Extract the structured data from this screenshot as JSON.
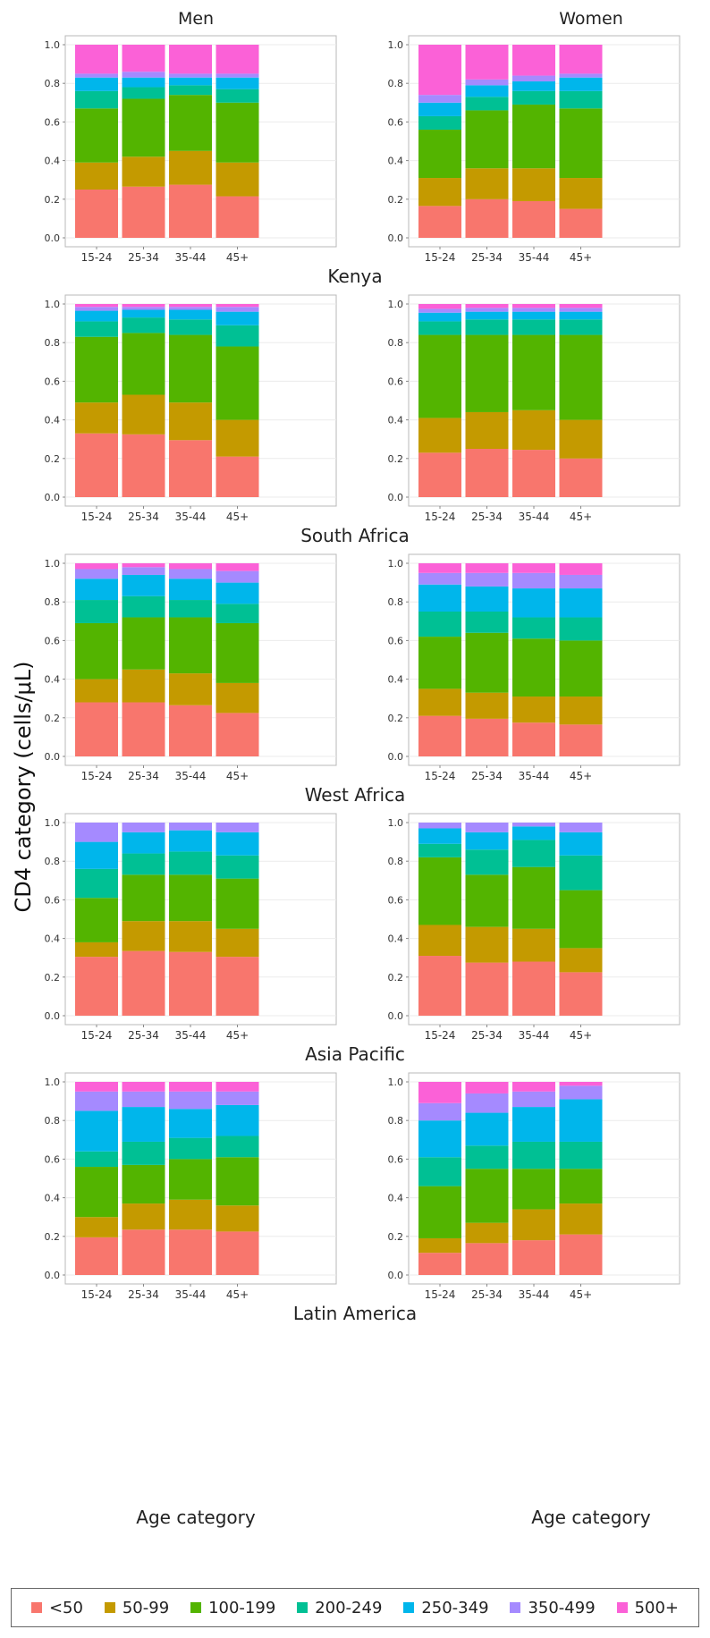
{
  "chart_data": {
    "type": "bar",
    "stacked": true,
    "ylabel": "CD4 category (cells/μL)",
    "column_titles": [
      "Men",
      "Women"
    ],
    "xlabel": "Age category",
    "categories": [
      "15-24",
      "25-34",
      "35-44",
      "45+"
    ],
    "ylim": [
      0,
      1
    ],
    "yticks": [
      "0.0",
      "0.2",
      "0.4",
      "0.6",
      "0.8",
      "1.0"
    ],
    "grid": true,
    "legend_position": "bottom",
    "legend": [
      {
        "label": "<50",
        "color": "#F8766D"
      },
      {
        "label": "50-99",
        "color": "#C49A00"
      },
      {
        "label": "100-199",
        "color": "#53B400"
      },
      {
        "label": "200-249",
        "color": "#00C094"
      },
      {
        "label": "250-349",
        "color": "#00B6EB"
      },
      {
        "label": "350-499",
        "color": "#A58AFF"
      },
      {
        "label": "500+",
        "color": "#FB61D7"
      }
    ],
    "regions": [
      {
        "name": "Kenya",
        "men": [
          [
            0,
            0.25,
            0.39,
            0.67,
            0.76,
            0.83,
            0.85,
            1.0
          ],
          [
            0,
            0.265,
            0.42,
            0.72,
            0.78,
            0.83,
            0.86,
            1.0
          ],
          [
            0,
            0.275,
            0.45,
            0.74,
            0.79,
            0.83,
            0.85,
            1.0
          ],
          [
            0,
            0.215,
            0.39,
            0.7,
            0.77,
            0.83,
            0.85,
            1.0
          ]
        ],
        "women": [
          [
            0,
            0.165,
            0.31,
            0.56,
            0.63,
            0.7,
            0.74,
            1.0
          ],
          [
            0,
            0.2,
            0.36,
            0.66,
            0.73,
            0.79,
            0.82,
            1.0
          ],
          [
            0,
            0.19,
            0.36,
            0.69,
            0.76,
            0.81,
            0.84,
            1.0
          ],
          [
            0,
            0.15,
            0.31,
            0.67,
            0.76,
            0.83,
            0.85,
            1.0
          ]
        ]
      },
      {
        "name": "South Africa",
        "men": [
          [
            0,
            0.33,
            0.49,
            0.83,
            0.91,
            0.965,
            0.985,
            1.0
          ],
          [
            0,
            0.325,
            0.53,
            0.85,
            0.93,
            0.97,
            0.985,
            1.0
          ],
          [
            0,
            0.295,
            0.49,
            0.84,
            0.92,
            0.97,
            0.985,
            1.0
          ],
          [
            0,
            0.21,
            0.4,
            0.78,
            0.89,
            0.96,
            0.985,
            1.0
          ]
        ],
        "women": [
          [
            0,
            0.23,
            0.41,
            0.84,
            0.91,
            0.955,
            0.975,
            1.0
          ],
          [
            0,
            0.25,
            0.44,
            0.84,
            0.92,
            0.96,
            0.98,
            1.0
          ],
          [
            0,
            0.245,
            0.45,
            0.84,
            0.92,
            0.96,
            0.98,
            1.0
          ],
          [
            0,
            0.2,
            0.4,
            0.84,
            0.92,
            0.96,
            0.98,
            1.0
          ]
        ]
      },
      {
        "name": "West Africa",
        "men": [
          [
            0,
            0.28,
            0.4,
            0.69,
            0.81,
            0.92,
            0.97,
            1.0
          ],
          [
            0,
            0.28,
            0.45,
            0.72,
            0.83,
            0.94,
            0.98,
            1.0
          ],
          [
            0,
            0.265,
            0.43,
            0.72,
            0.81,
            0.92,
            0.97,
            1.0
          ],
          [
            0,
            0.225,
            0.38,
            0.69,
            0.79,
            0.9,
            0.96,
            1.0
          ]
        ],
        "women": [
          [
            0,
            0.21,
            0.35,
            0.62,
            0.75,
            0.89,
            0.95,
            1.0
          ],
          [
            0,
            0.195,
            0.33,
            0.64,
            0.75,
            0.88,
            0.95,
            1.0
          ],
          [
            0,
            0.175,
            0.31,
            0.61,
            0.72,
            0.87,
            0.95,
            1.0
          ],
          [
            0,
            0.165,
            0.31,
            0.6,
            0.72,
            0.87,
            0.94,
            1.0
          ]
        ]
      },
      {
        "name": "Asia Pacific",
        "men": [
          [
            0,
            0.305,
            0.38,
            0.61,
            0.76,
            0.9,
            1.0,
            1.0
          ],
          [
            0,
            0.335,
            0.49,
            0.73,
            0.84,
            0.95,
            1.0,
            1.0
          ],
          [
            0,
            0.33,
            0.49,
            0.73,
            0.85,
            0.96,
            1.0,
            1.0
          ],
          [
            0,
            0.305,
            0.45,
            0.71,
            0.83,
            0.95,
            1.0,
            1.0
          ]
        ],
        "women": [
          [
            0,
            0.31,
            0.47,
            0.82,
            0.89,
            0.97,
            1.0,
            1.0
          ],
          [
            0,
            0.275,
            0.46,
            0.73,
            0.86,
            0.95,
            1.0,
            1.0
          ],
          [
            0,
            0.28,
            0.45,
            0.77,
            0.91,
            0.98,
            1.0,
            1.0
          ],
          [
            0,
            0.225,
            0.35,
            0.65,
            0.83,
            0.95,
            1.0,
            1.0
          ]
        ]
      },
      {
        "name": "Latin America",
        "men": [
          [
            0,
            0.195,
            0.3,
            0.56,
            0.64,
            0.85,
            0.95,
            1.0
          ],
          [
            0,
            0.235,
            0.37,
            0.57,
            0.69,
            0.87,
            0.95,
            1.0
          ],
          [
            0,
            0.235,
            0.39,
            0.6,
            0.71,
            0.86,
            0.95,
            1.0
          ],
          [
            0,
            0.225,
            0.36,
            0.61,
            0.72,
            0.88,
            0.95,
            1.0
          ]
        ],
        "women": [
          [
            0,
            0.115,
            0.19,
            0.46,
            0.61,
            0.8,
            0.89,
            1.0
          ],
          [
            0,
            0.165,
            0.27,
            0.55,
            0.67,
            0.84,
            0.94,
            1.0
          ],
          [
            0,
            0.18,
            0.34,
            0.55,
            0.69,
            0.87,
            0.95,
            1.0
          ],
          [
            0,
            0.21,
            0.37,
            0.55,
            0.69,
            0.91,
            0.98,
            1.0
          ]
        ]
      }
    ]
  }
}
